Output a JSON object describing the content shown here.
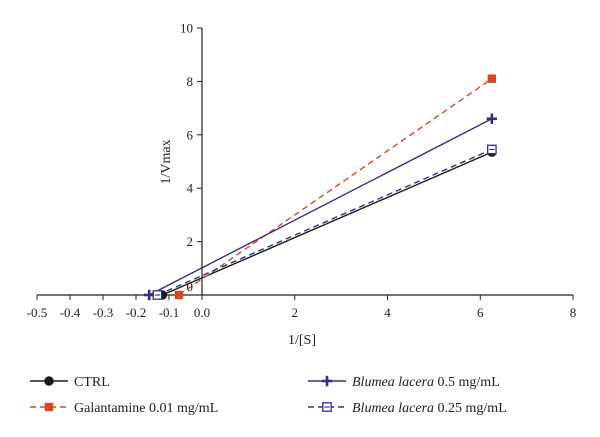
{
  "chart_data": {
    "type": "line",
    "title": "",
    "xlabel": "1/[S]",
    "ylabel": "1/Vmax",
    "xlim": [
      -0.5,
      8
    ],
    "ylim": [
      0,
      10
    ],
    "x_ticks_negative": [
      "-0.5",
      "-0.4",
      "-0.3",
      "-0.2",
      "-0.1",
      "0.0"
    ],
    "x_ticks_positive": [
      "2",
      "4",
      "6",
      "8"
    ],
    "y_ticks": [
      "2",
      "4",
      "6",
      "8",
      "10"
    ],
    "y_zero_label": "0",
    "grid": false,
    "legend_position": "bottom",
    "series": [
      {
        "name": "CTRL",
        "name_suffix": "",
        "color": "#1a1a1a",
        "dash": "solid",
        "marker": "filled-circle",
        "x_intercept": -0.12,
        "points": [
          [
            -0.12,
            0
          ],
          [
            6.25,
            5.35
          ]
        ]
      },
      {
        "name": "Galantamine",
        "name_suffix": " 0.01 mg/mL",
        "color": "#d9481e",
        "dash": "dashed",
        "marker": "filled-square",
        "x_intercept": -0.07,
        "points": [
          [
            -0.07,
            0
          ],
          [
            6.25,
            8.1
          ]
        ]
      },
      {
        "name": "Blumea lacera",
        "name_suffix": " 0.5 mg/mL",
        "italic": true,
        "color": "#3a2a8a",
        "dash": "solid",
        "marker": "plus",
        "x_intercept": -0.16,
        "points": [
          [
            -0.16,
            0
          ],
          [
            6.25,
            6.6
          ]
        ]
      },
      {
        "name": "Blumea lacera",
        "name_suffix": " 0.25 mg/mL",
        "italic": true,
        "color": "#3a2a8a",
        "dash": "dashed",
        "marker": "open-square",
        "x_intercept": -0.135,
        "points": [
          [
            -0.135,
            0
          ],
          [
            6.25,
            5.45
          ]
        ]
      }
    ]
  }
}
